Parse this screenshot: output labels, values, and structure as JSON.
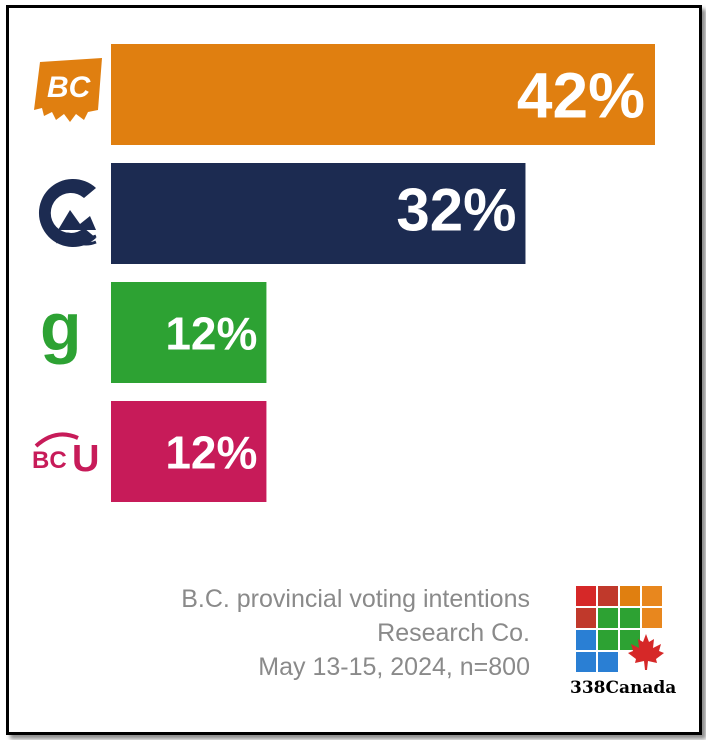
{
  "chart_data": {
    "type": "bar",
    "orientation": "horizontal",
    "categories": [
      "BC United",
      "Conservative",
      "Green",
      "BCU"
    ],
    "values": [
      42,
      32,
      12,
      12
    ],
    "value_labels": [
      "42%",
      "32%",
      "12%",
      "12%"
    ],
    "colors": [
      "#E07F10",
      "#1C2B51",
      "#2DA233",
      "#C71B59"
    ],
    "category_logos": [
      "bc-logo-icon",
      "conservative-logo-icon",
      "green-g-logo-icon",
      "bcu-logo-icon"
    ],
    "xlim": [
      0,
      42
    ],
    "grid": false,
    "legend": "none"
  },
  "caption": {
    "line1": "B.C. provincial voting intentions",
    "line2": "Research Co.",
    "line3": "May 13-15, 2024, n=800"
  },
  "brand": {
    "name": "338Canada",
    "logo_colors": [
      "#D62828",
      "#C0392B",
      "#E07F10",
      "#E8871E",
      "#C0392B",
      "#2DA233",
      "#2DA233",
      "#E8871E",
      "#2A7FD4",
      "#2DA233",
      "#2DA233",
      "",
      "#2A7FD4",
      "#2A7FD4",
      "",
      ""
    ],
    "maple_leaf_color": "#D62828"
  }
}
